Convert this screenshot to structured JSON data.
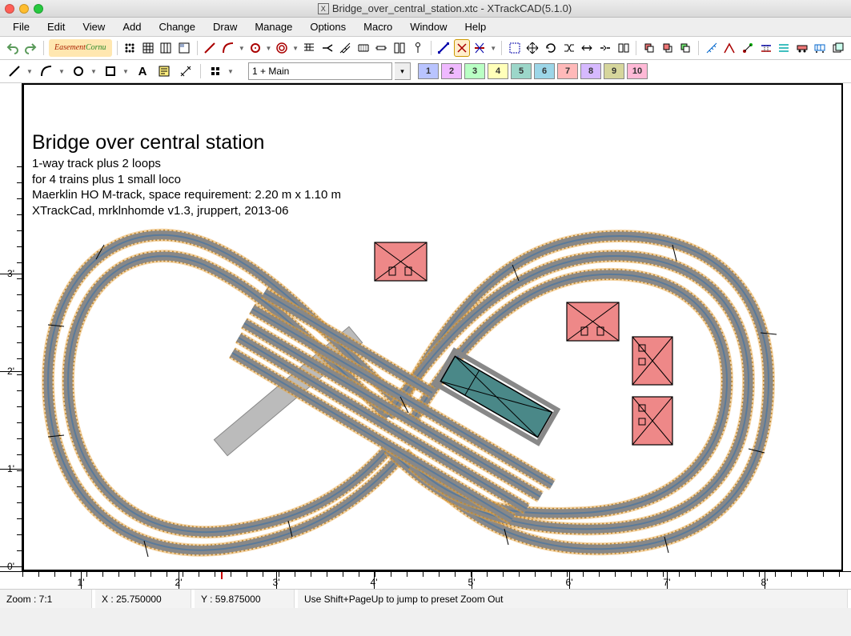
{
  "window": {
    "title": "Bridge_over_central_station.xtc - XTrackCAD(5.1.0)",
    "app_icon_letter": "X"
  },
  "menu": [
    "File",
    "Edit",
    "View",
    "Add",
    "Change",
    "Draw",
    "Manage",
    "Options",
    "Macro",
    "Window",
    "Help"
  ],
  "toolbar1": {
    "easement_label": "Easement\nCornu",
    "easement_colors": {
      "fg": "#aa2200",
      "bg": "#ffe7b0"
    }
  },
  "toolbar2": {
    "layer_value": "1 + Main",
    "layers": [
      {
        "n": "1",
        "bg": "#b9c4ff"
      },
      {
        "n": "2",
        "bg": "#efb9ff"
      },
      {
        "n": "3",
        "bg": "#b9ffc4"
      },
      {
        "n": "4",
        "bg": "#ffffb9"
      },
      {
        "n": "5",
        "bg": "#9cd6c9"
      },
      {
        "n": "6",
        "bg": "#9cd6e8"
      },
      {
        "n": "7",
        "bg": "#ffb9b9"
      },
      {
        "n": "8",
        "bg": "#d6b9ff"
      },
      {
        "n": "9",
        "bg": "#d6d69c"
      },
      {
        "n": "10",
        "bg": "#ffb9d6"
      }
    ]
  },
  "layout": {
    "title": "Bridge over central station",
    "lines": [
      "1-way track plus 2 loops",
      "for 4 trains plus 1 small loco",
      "Maerklin HO M-track, space requirement: 2.20 m x 1.10 m",
      "XTrackCad, mrklnhomde v1.3, jruppert, 2013-06"
    ],
    "ruler_y_labels": [
      "0'",
      "1'",
      "2'",
      "3'"
    ],
    "ruler_x_labels": [
      "1'",
      "2'",
      "3'",
      "4'",
      "5'",
      "6'",
      "7'",
      "8'"
    ],
    "colors": {
      "track_ballast": "#e8a84a",
      "track_bed": "#888888",
      "track_center": "#5a7a9a",
      "building_red": "#ee8888",
      "building_teal": "#4a8888",
      "bridge_gray": "#bbbbbb"
    }
  },
  "status": {
    "zoom": "Zoom : 7:1",
    "x": "X : 25.750000",
    "y": "Y : 59.875000",
    "msg": "Use Shift+PageUp to jump to preset Zoom Out"
  }
}
